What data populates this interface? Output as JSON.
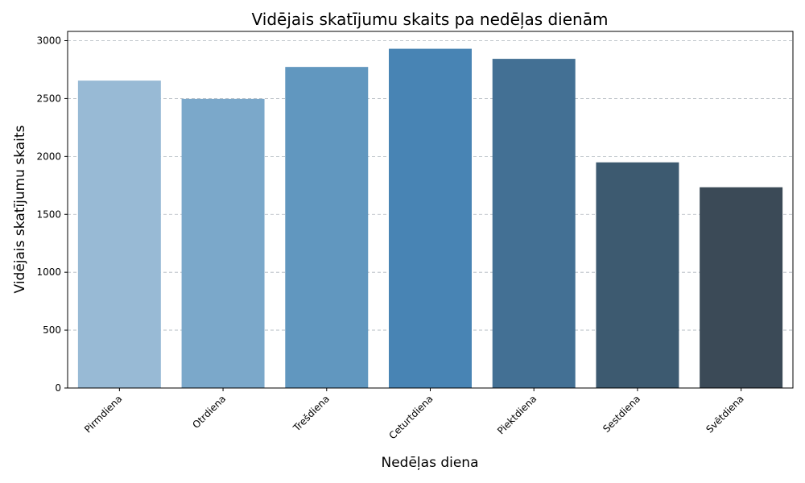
{
  "chart_data": {
    "type": "bar",
    "title": "Vidējais skatījumu skaits pa nedēļas dienām",
    "xlabel": "Nedēļas diena",
    "ylabel": "Vidējais skatījumu skaits",
    "categories": [
      "Pirmdiena",
      "Otrdiena",
      "Trešdiena",
      "Ceturtdiena",
      "Piektdiena",
      "Sestdiena",
      "Svētdiena"
    ],
    "values": [
      2655,
      2497,
      2773,
      2930,
      2843,
      1949,
      1734
    ],
    "colors": [
      "#98bad5",
      "#7ba8ca",
      "#6197bf",
      "#4884b4",
      "#437094",
      "#3d5a70",
      "#3b4a57"
    ],
    "ylim": [
      0,
      3080
    ],
    "yticks": [
      0,
      500,
      1000,
      1500,
      2000,
      2500,
      3000
    ],
    "grid": "y-dashed",
    "legend": "none"
  }
}
